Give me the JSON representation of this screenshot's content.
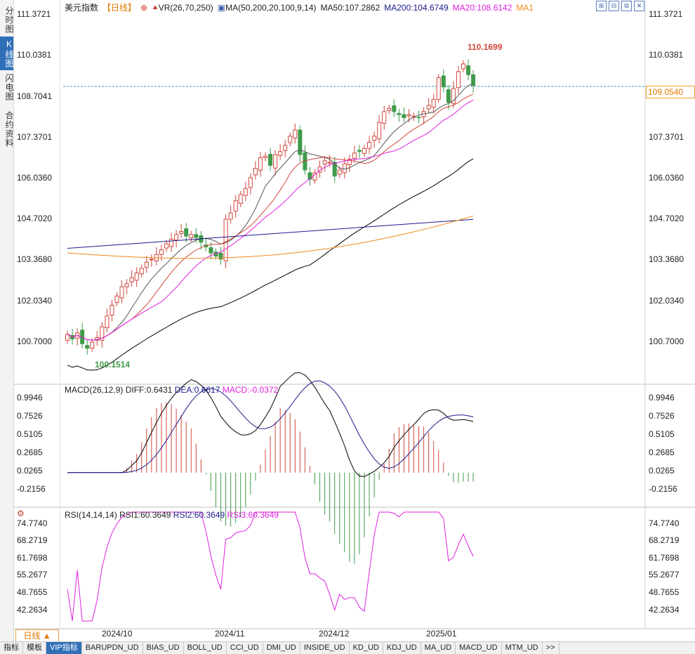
{
  "sidebar": {
    "tabs": [
      {
        "label": "分时图",
        "active": false
      },
      {
        "label": "K线图",
        "active": true
      },
      {
        "label": "闪电图",
        "active": false
      },
      {
        "label": "合约资料",
        "active": false
      }
    ]
  },
  "header": {
    "instrument": "美元指数",
    "period": "【日线】",
    "vr": "VR(26,70,250)",
    "ma_params": "MA(50,200,20,100,9,14)",
    "ma50": "MA50:107.2862",
    "ma200": "MA200:104.6749",
    "ma20": "MA20:108.6142",
    "ma1": "MA1"
  },
  "price_axis": [
    "111.3721",
    "110.0381",
    "108.7041",
    "107.3701",
    "106.0360",
    "104.7020",
    "103.3680",
    "102.0340",
    "100.7000"
  ],
  "current_price": "109.0540",
  "high_label": "110.1699",
  "low_label": "100.1514",
  "macd": {
    "title": "MACD(26,12,9)",
    "diff": "DIFF:0.6431",
    "dea": "DEA:0.6617",
    "macd": "MACD:-0.0372",
    "axis": [
      "0.9946",
      "0.7526",
      "0.5105",
      "0.2685",
      "0.0265",
      "-0.2156"
    ]
  },
  "rsi": {
    "title": "RSI(14,14,14)",
    "rsi1": "RSI1:60.3649",
    "rsi2": "RSI2:60.3649",
    "rsi3": "RSI3:60.3649",
    "axis": [
      "74.7740",
      "68.2719",
      "61.7698",
      "55.2677",
      "48.7655",
      "42.2634"
    ]
  },
  "x_axis": [
    "2024/10",
    "2024/11",
    "2024/12",
    "2025/01"
  ],
  "period_button": "日线 ▲",
  "bottom_tabs": [
    "指标",
    "模板",
    "VIP指标",
    "BARUPDN_UD",
    "BIAS_UD",
    "BOLL_UD",
    "CCI_UD",
    "DMI_UD",
    "INSIDE_UD",
    "KD_UD",
    "KDJ_UD",
    "MA_UD",
    "MACD_UD",
    "MTM_UD",
    ">>"
  ],
  "colors": {
    "up": "#d0473c",
    "down": "#3f9a4a",
    "ma50": "#000000",
    "ma200": "#1a1a8c",
    "ma20": "#e020e0",
    "ma100": "#f08a1c",
    "accent": "#2f6fb8"
  },
  "chart_data": {
    "type": "line",
    "dates_start": "2024/09",
    "close_series": [
      100.95,
      100.8,
      101.0,
      100.65,
      100.5,
      100.7,
      100.85,
      101.2,
      101.55,
      101.9,
      102.2,
      102.5,
      102.6,
      102.8,
      102.95,
      103.1,
      103.3,
      103.4,
      103.55,
      103.7,
      103.9,
      104.05,
      104.2,
      104.3,
      104.15,
      104.2,
      104.1,
      103.95,
      103.8,
      103.6,
      103.5,
      103.4,
      104.7,
      104.9,
      105.3,
      105.5,
      105.7,
      106.05,
      106.35,
      106.7,
      106.75,
      106.45,
      106.8,
      106.9,
      107.1,
      107.4,
      107.6,
      106.8,
      106.3,
      106.0,
      106.2,
      106.4,
      106.6,
      106.55,
      106.1,
      106.3,
      106.5,
      106.65,
      106.85,
      106.9,
      107.0,
      107.2,
      107.4,
      107.85,
      108.2,
      108.3,
      108.2,
      108.1,
      108.0,
      108.1,
      108.05,
      108.0,
      108.2,
      108.4,
      108.6,
      109.3,
      109.0,
      108.5,
      108.95,
      109.5,
      109.75,
      109.4,
      109.05
    ]
  }
}
